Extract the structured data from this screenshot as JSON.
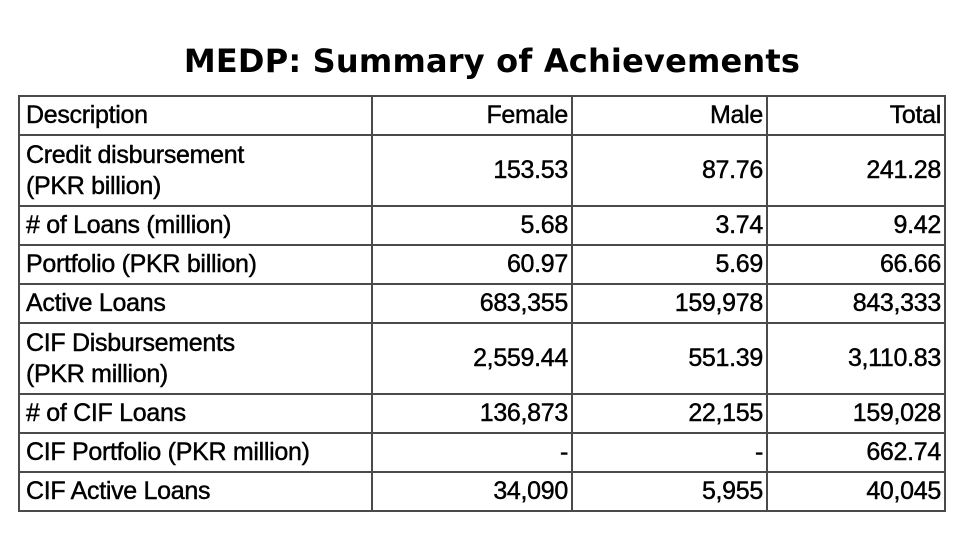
{
  "title": "MEDP: Summary of Achievements",
  "table": {
    "headers": [
      "Description",
      "Female",
      "Male",
      "Total"
    ],
    "rows": [
      {
        "description": [
          "Credit disbursement",
          "(PKR billion)"
        ],
        "female": "153.53",
        "male": "87.76",
        "total": "241.28"
      },
      {
        "description": [
          "# of Loans (million)"
        ],
        "female": "5.68",
        "male": "3.74",
        "total": "9.42"
      },
      {
        "description": [
          "Portfolio (PKR billion)"
        ],
        "female": "60.97",
        "male": "5.69",
        "total": "66.66"
      },
      {
        "description": [
          "Active Loans"
        ],
        "female": "683,355",
        "male": "159,978",
        "total": "843,333"
      },
      {
        "description": [
          "CIF Disbursements",
          "(PKR million)"
        ],
        "female": "2,559.44",
        "male": "551.39",
        "total": "3,110.83"
      },
      {
        "description": [
          "# of CIF Loans"
        ],
        "female": "136,873",
        "male": "22,155",
        "total": "159,028"
      },
      {
        "description": [
          "CIF Portfolio (PKR million)"
        ],
        "female": "-",
        "male": "-",
        "total": "662.74"
      },
      {
        "description": [
          "CIF Active Loans"
        ],
        "female": "34,090",
        "male": "5,955",
        "total": "40,045"
      }
    ]
  }
}
